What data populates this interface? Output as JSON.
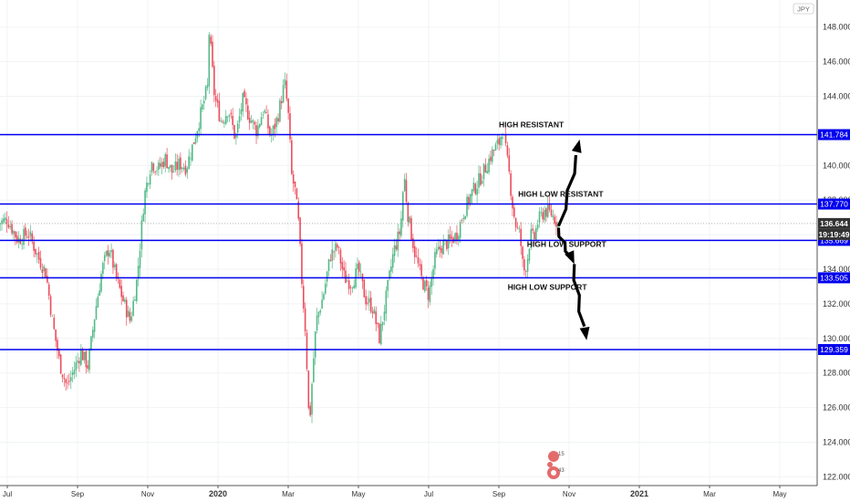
{
  "chart_data": {
    "type": "candlestick",
    "instrument_currency": "JPY",
    "y_axis": {
      "ylim": [
        121.6,
        151.4
      ],
      "ticks": [
        "124.000",
        "126.000",
        "128.000",
        "130.000",
        "132.000",
        "134.000",
        "136.000",
        "138.000",
        "140.000",
        "144.000",
        "146.000",
        "148.000"
      ],
      "tick_values": [
        124,
        126,
        128,
        130,
        132,
        134,
        136,
        138,
        140,
        144,
        146,
        148
      ],
      "top_partial_label": "150.000",
      "bottom_partial_label": "122.000"
    },
    "x_axis": {
      "ticks": [
        {
          "label": "Jul",
          "month_index": 0,
          "bold": false
        },
        {
          "label": "Sep",
          "month_index": 2,
          "bold": false
        },
        {
          "label": "Nov",
          "month_index": 4,
          "bold": false
        },
        {
          "label": "2020",
          "month_index": 6,
          "bold": true
        },
        {
          "label": "Mar",
          "month_index": 8,
          "bold": false
        },
        {
          "label": "May",
          "month_index": 10,
          "bold": false
        },
        {
          "label": "Jul",
          "month_index": 12,
          "bold": false
        },
        {
          "label": "Sep",
          "month_index": 14,
          "bold": false
        },
        {
          "label": "Nov",
          "month_index": 16,
          "bold": false
        },
        {
          "label": "2021",
          "month_index": 18,
          "bold": true
        },
        {
          "label": "Mar",
          "month_index": 20,
          "bold": false
        },
        {
          "label": "May",
          "month_index": 22,
          "bold": false
        }
      ]
    },
    "price_path": [
      [
        -0.3,
        136.6
      ],
      [
        0.0,
        136.9
      ],
      [
        0.3,
        135.7
      ],
      [
        0.6,
        136.1
      ],
      [
        0.9,
        134.6
      ],
      [
        1.1,
        133.8
      ],
      [
        1.3,
        130.8
      ],
      [
        1.5,
        128.5
      ],
      [
        1.7,
        127.2
      ],
      [
        1.9,
        128.2
      ],
      [
        2.1,
        129.2
      ],
      [
        2.3,
        128.4
      ],
      [
        2.5,
        131.5
      ],
      [
        2.7,
        134.0
      ],
      [
        2.9,
        135.3
      ],
      [
        3.1,
        133.5
      ],
      [
        3.3,
        132.2
      ],
      [
        3.5,
        131.0
      ],
      [
        3.7,
        133.5
      ],
      [
        3.9,
        138.2
      ],
      [
        4.1,
        140.2
      ],
      [
        4.3,
        139.8
      ],
      [
        4.5,
        140.4
      ],
      [
        4.7,
        139.6
      ],
      [
        4.9,
        140.1
      ],
      [
        5.1,
        139.9
      ],
      [
        5.3,
        141.3
      ],
      [
        5.5,
        142.9
      ],
      [
        5.7,
        144.5
      ],
      [
        5.75,
        147.8
      ],
      [
        5.9,
        144.0
      ],
      [
        6.1,
        142.5
      ],
      [
        6.3,
        143.3
      ],
      [
        6.5,
        141.5
      ],
      [
        6.7,
        143.8
      ],
      [
        6.9,
        142.8
      ],
      [
        7.1,
        142.0
      ],
      [
        7.3,
        143.3
      ],
      [
        7.5,
        141.6
      ],
      [
        7.7,
        142.8
      ],
      [
        7.9,
        144.8
      ],
      [
        8.0,
        143.0
      ],
      [
        8.1,
        139.4
      ],
      [
        8.2,
        138.5
      ],
      [
        8.3,
        136.5
      ],
      [
        8.4,
        132.9
      ],
      [
        8.5,
        130.2
      ],
      [
        8.6,
        124.8
      ],
      [
        8.7,
        128.2
      ],
      [
        8.8,
        131.0
      ],
      [
        9.0,
        132.5
      ],
      [
        9.2,
        134.8
      ],
      [
        9.4,
        135.3
      ],
      [
        9.6,
        133.5
      ],
      [
        9.8,
        133.2
      ],
      [
        10.0,
        134.0
      ],
      [
        10.2,
        132.3
      ],
      [
        10.4,
        131.8
      ],
      [
        10.6,
        130.0
      ],
      [
        10.8,
        132.5
      ],
      [
        11.0,
        135.0
      ],
      [
        11.2,
        136.3
      ],
      [
        11.3,
        139.5
      ],
      [
        11.4,
        137.3
      ],
      [
        11.6,
        135.0
      ],
      [
        11.8,
        133.4
      ],
      [
        12.0,
        132.5
      ],
      [
        12.2,
        134.8
      ],
      [
        12.4,
        135.4
      ],
      [
        12.6,
        135.6
      ],
      [
        12.8,
        136.0
      ],
      [
        13.0,
        137.3
      ],
      [
        13.2,
        138.3
      ],
      [
        13.4,
        139.0
      ],
      [
        13.6,
        139.8
      ],
      [
        13.8,
        140.7
      ],
      [
        14.0,
        141.3
      ],
      [
        14.1,
        142.1
      ],
      [
        14.2,
        140.8
      ],
      [
        14.3,
        139.4
      ],
      [
        14.4,
        137.5
      ],
      [
        14.5,
        136.4
      ],
      [
        14.6,
        136.0
      ],
      [
        14.7,
        133.8
      ],
      [
        14.8,
        134.4
      ],
      [
        14.9,
        136.0
      ],
      [
        15.0,
        135.7
      ],
      [
        15.1,
        136.7
      ],
      [
        15.3,
        137.4
      ],
      [
        15.5,
        137.2
      ],
      [
        15.7,
        136.6
      ]
    ],
    "levels": [
      {
        "label": "141.784",
        "value": 141.784
      },
      {
        "label": "137.770",
        "value": 137.77
      },
      {
        "label": "135.669",
        "value": 135.669
      },
      {
        "label": "133.505",
        "value": 133.505
      },
      {
        "label": "129.359",
        "value": 129.359
      }
    ],
    "last_price": {
      "label": "136.644",
      "value": 136.644
    },
    "countdown": {
      "label": "19:19:49"
    },
    "annotations": [
      {
        "text": "HIGH RESISTANT",
        "month": 14.0,
        "value": 142.2
      },
      {
        "text": "HIGH LOW RESISTANT",
        "month": 14.55,
        "value": 138.2
      },
      {
        "text": "HIGH LOW SUPPORT",
        "month": 14.8,
        "value": 135.3
      },
      {
        "text": "HIGH LOW SUPPORT",
        "month": 14.25,
        "value": 132.8
      }
    ],
    "arrows": [
      {
        "from": [
          15.7,
          136.5
        ],
        "to": [
          16.3,
          141.5
        ]
      },
      {
        "from": [
          15.7,
          136.4
        ],
        "to": [
          16.15,
          134.3
        ]
      },
      {
        "from": [
          16.15,
          134.3
        ],
        "to": [
          16.5,
          129.9
        ]
      }
    ],
    "colors": {
      "up": "#53b987",
      "down": "#eb4d5c",
      "level": "#0000ee",
      "level_label_bg": "#0000ee",
      "last_price_bg": "#333333",
      "countdown_bg": "#333333",
      "grid": "#f0f3f5",
      "axis_text": "#333333"
    },
    "watermark": {
      "numbers": [
        "15",
        "43"
      ]
    }
  }
}
